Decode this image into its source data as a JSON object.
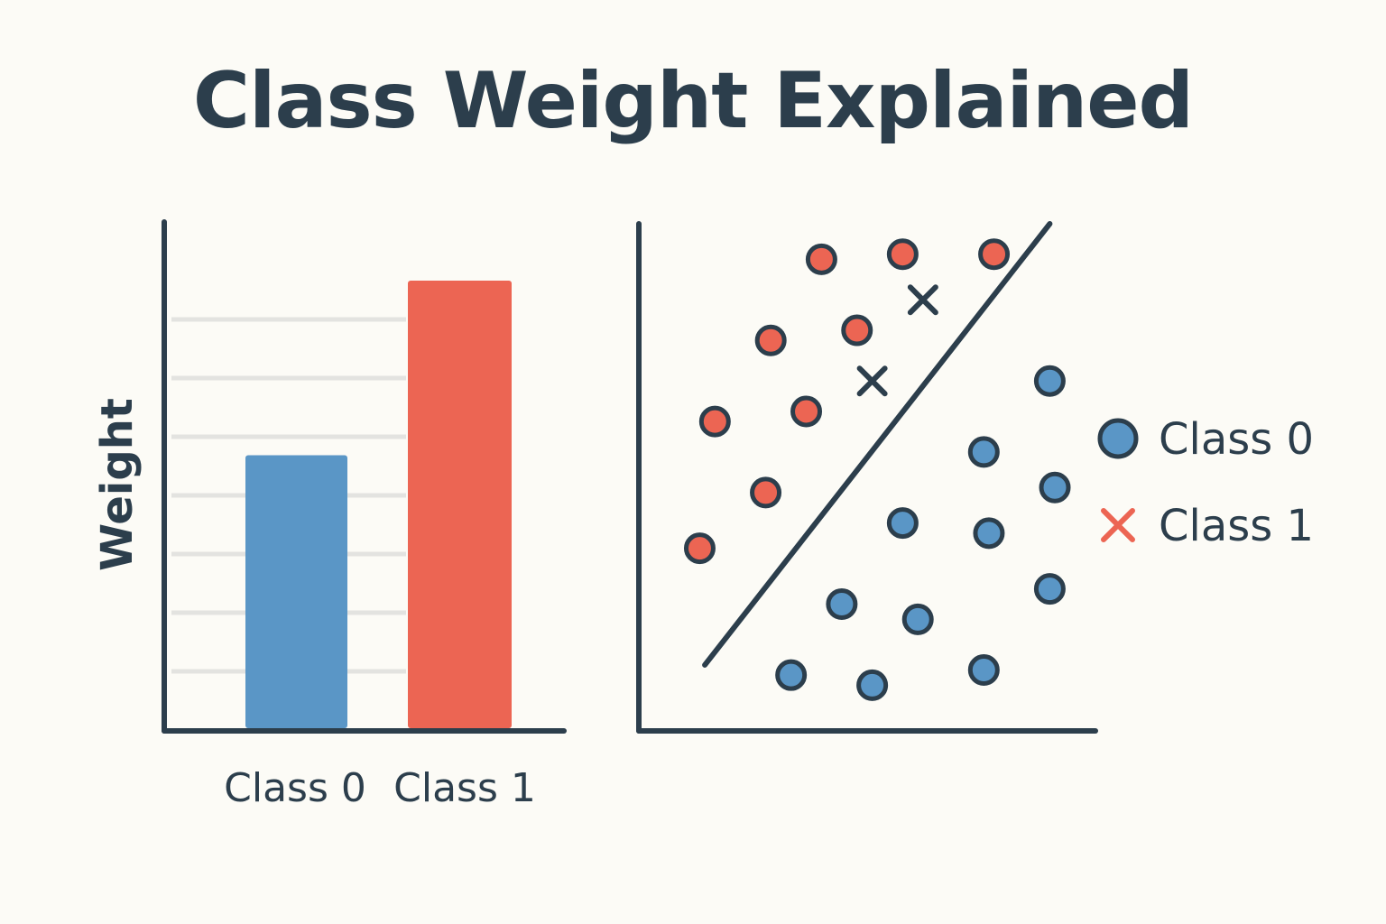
{
  "title": "Class Weight Explained",
  "colors": {
    "ink": "#2c3e4c",
    "class0": "#5a96c6",
    "class1": "#ec6553",
    "grid": "#e3e3e0",
    "background": "#fcfbf6"
  },
  "chart_data": [
    {
      "type": "bar",
      "categories": [
        "Class 0",
        "Class 1"
      ],
      "values": [
        0.61,
        1.0
      ],
      "ylabel": "Weight",
      "xlabel": "",
      "ylim": [
        0,
        1.0
      ],
      "grid": true,
      "gridlines": 7,
      "bar_colors": [
        "#5a96c6",
        "#ec6553"
      ]
    },
    {
      "type": "scatter",
      "series": [
        {
          "name": "Class 0",
          "marker": "circle",
          "color": "#5a96c6",
          "points": [
            [
              8.1,
              6.9
            ],
            [
              6.8,
              5.5
            ],
            [
              8.2,
              4.8
            ],
            [
              5.2,
              4.1
            ],
            [
              6.9,
              3.9
            ],
            [
              8.1,
              2.8
            ],
            [
              4.0,
              2.5
            ],
            [
              5.5,
              2.2
            ],
            [
              3.0,
              1.1
            ],
            [
              4.6,
              0.9
            ],
            [
              6.8,
              1.2
            ]
          ]
        },
        {
          "name": "Class 1",
          "marker": "circle",
          "color": "#ec6553",
          "points": [
            [
              3.6,
              9.3
            ],
            [
              5.2,
              9.4
            ],
            [
              7.0,
              9.4
            ],
            [
              2.6,
              7.7
            ],
            [
              4.3,
              7.9
            ],
            [
              1.5,
              6.1
            ],
            [
              3.3,
              6.3
            ],
            [
              2.5,
              4.7
            ],
            [
              1.2,
              3.6
            ]
          ]
        },
        {
          "name": "Class 1",
          "marker": "x",
          "color": "#2c3e4c",
          "points": [
            [
              5.6,
              8.5
            ],
            [
              4.6,
              6.9
            ]
          ]
        }
      ],
      "decision_boundary": [
        [
          1.3,
          1.3
        ],
        [
          8.1,
          10.0
        ]
      ],
      "xlim": [
        0,
        9
      ],
      "ylim": [
        0,
        10
      ],
      "legend": {
        "position": "right",
        "entries": [
          {
            "label": "Class 0",
            "marker": "circle",
            "color": "#5a96c6"
          },
          {
            "label": "Class 1",
            "marker": "x",
            "color": "#ec6553"
          }
        ]
      }
    }
  ]
}
